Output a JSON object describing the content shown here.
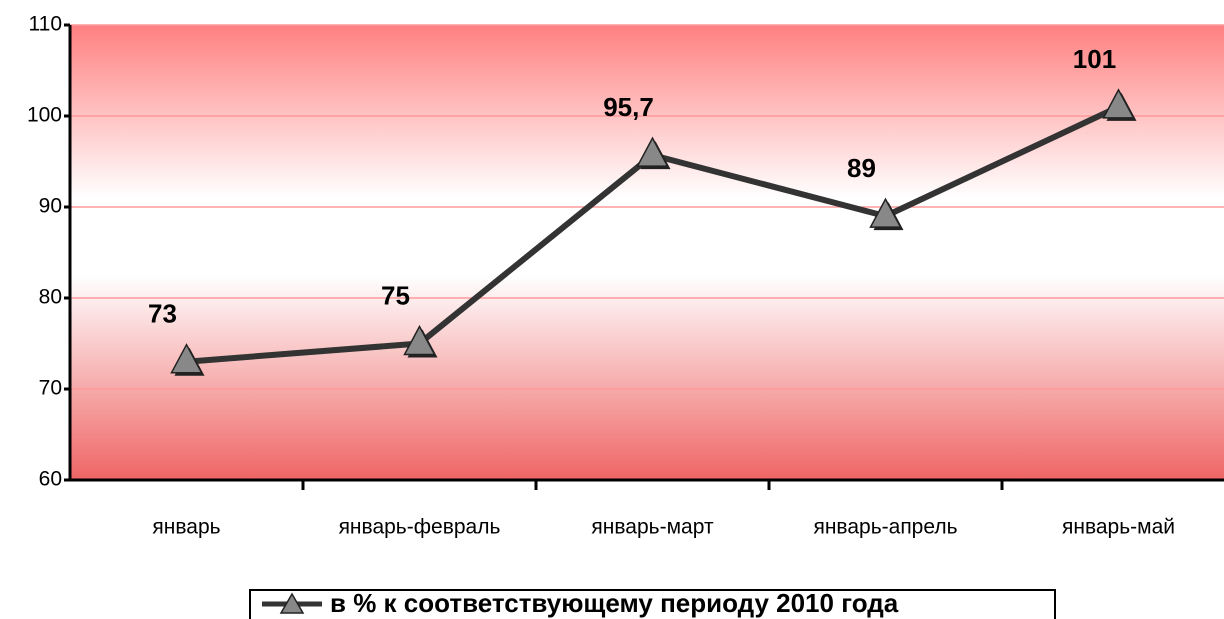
{
  "chart_data": {
    "type": "line",
    "categories": [
      "январь",
      "январь-февраль",
      "январь-март",
      "январь-апрель",
      "январь-май"
    ],
    "series": [
      {
        "name": "в % к соответствующему периоду 2010 года",
        "color": "#333333",
        "values": [
          73,
          75,
          95.7,
          89,
          101
        ],
        "value_labels": [
          "73",
          "75",
          "95,7",
          "89",
          "101"
        ]
      }
    ],
    "ylim": [
      60,
      110
    ],
    "yticks": [
      60,
      70,
      80,
      90,
      100,
      110
    ],
    "grid": true,
    "legend": "bottom"
  }
}
